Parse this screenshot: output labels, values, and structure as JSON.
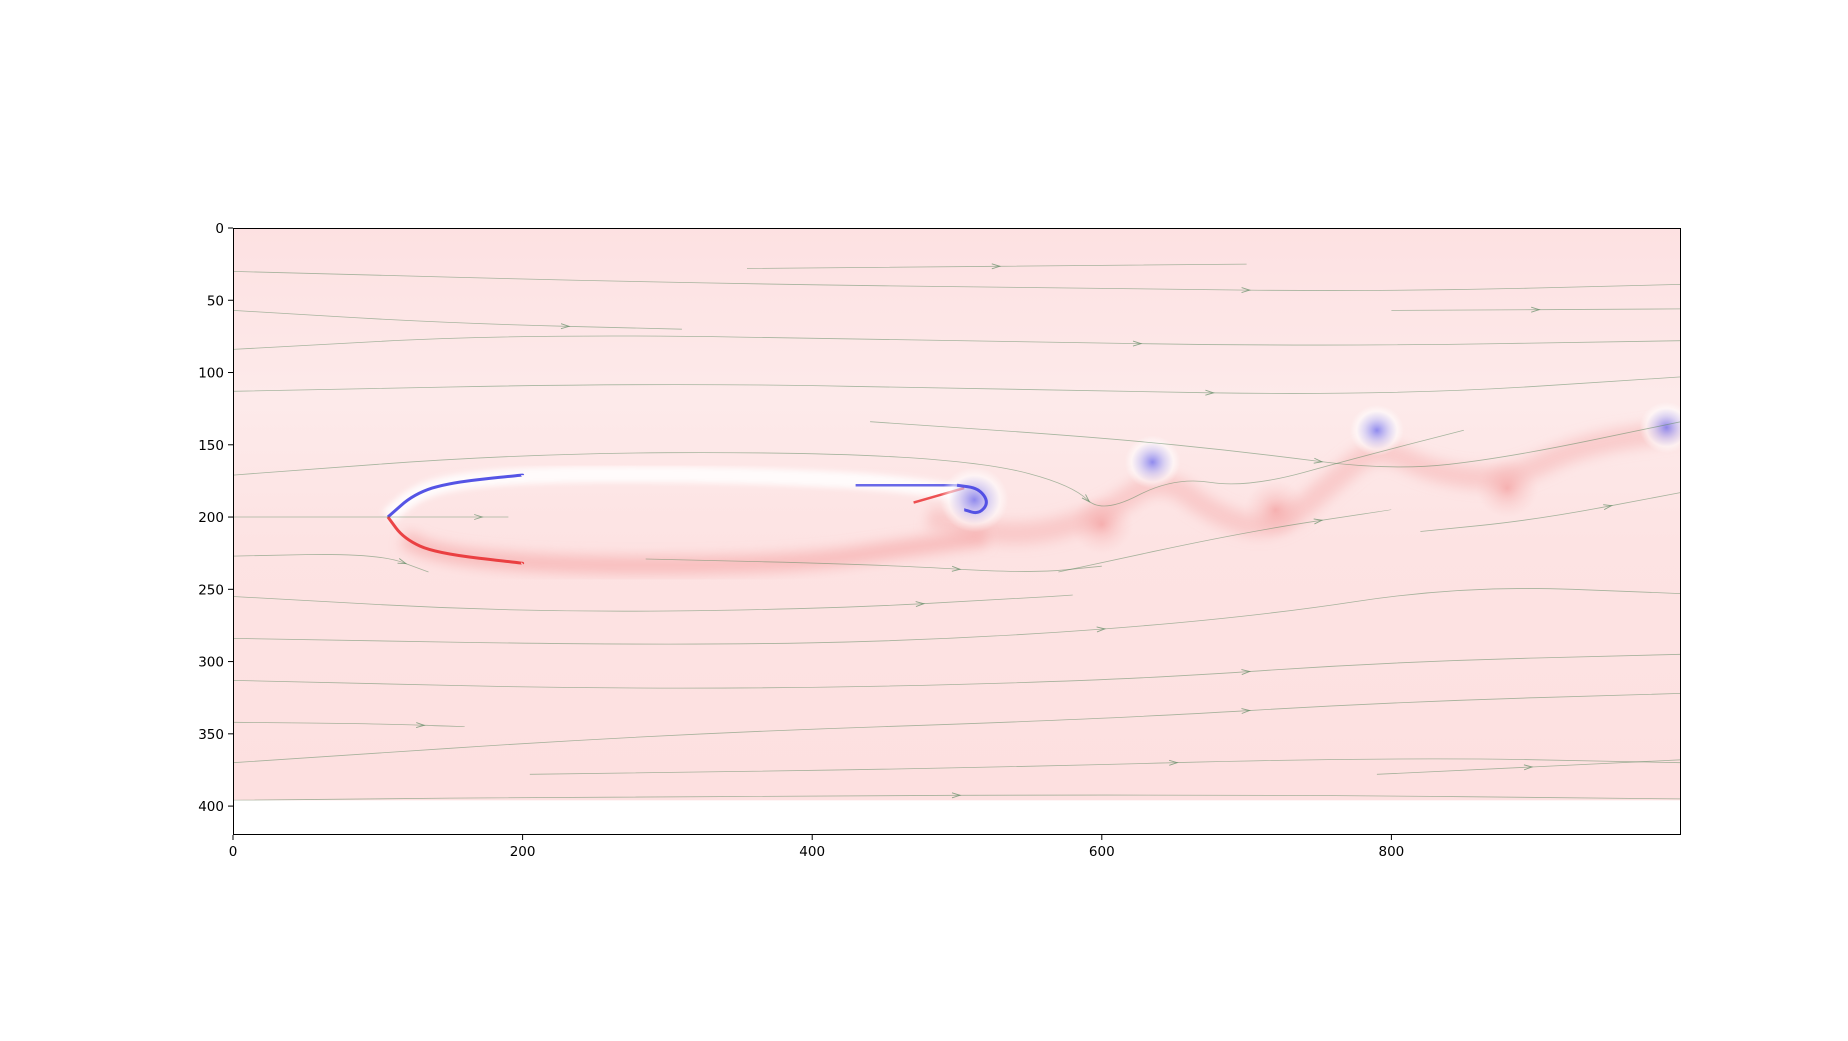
{
  "chart_data": {
    "type": "heatmap",
    "title": "",
    "xlabel": "",
    "ylabel": "",
    "xlim": [
      0,
      1000
    ],
    "ylim": [
      420,
      0
    ],
    "data_extent_y": [
      0,
      396
    ],
    "x_ticks": [
      0,
      200,
      400,
      600,
      800
    ],
    "y_ticks": [
      0,
      50,
      100,
      150,
      200,
      250,
      300,
      350,
      400
    ],
    "y_axis_inverted": true,
    "grid": false,
    "legend": "none",
    "colormap": "bwr",
    "colors": {
      "background": "#fde6e6",
      "positive": "#e8282a",
      "negative": "#2a2ae0",
      "neutral": "#ffffff",
      "streamline": "#5e8a62"
    },
    "airfoil": {
      "leading_edge": [
        107,
        200
      ],
      "trailing_edge": [
        500,
        183
      ],
      "upper_surface": [
        [
          107,
          200
        ],
        [
          125,
          184
        ],
        [
          150,
          176
        ],
        [
          200,
          171
        ],
        [
          300,
          170
        ],
        [
          400,
          173
        ],
        [
          460,
          177
        ],
        [
          500,
          183
        ]
      ],
      "lower_surface": [
        [
          107,
          200
        ],
        [
          118,
          215
        ],
        [
          140,
          225
        ],
        [
          200,
          232
        ],
        [
          300,
          234
        ],
        [
          400,
          231
        ],
        [
          460,
          222
        ],
        [
          500,
          183
        ]
      ]
    },
    "wake_vortices": [
      {
        "x": 512,
        "y": 188,
        "sign": "negative",
        "strength": 0.9
      },
      {
        "x": 635,
        "y": 162,
        "sign": "negative",
        "strength": 0.55
      },
      {
        "x": 790,
        "y": 140,
        "sign": "negative",
        "strength": 0.5
      },
      {
        "x": 990,
        "y": 138,
        "sign": "negative",
        "strength": 0.5
      },
      {
        "x": 600,
        "y": 205,
        "sign": "positive",
        "strength": 0.3
      },
      {
        "x": 720,
        "y": 195,
        "sign": "positive",
        "strength": 0.3
      },
      {
        "x": 880,
        "y": 180,
        "sign": "positive",
        "strength": 0.3
      }
    ],
    "streamlines": [
      [
        [
          0,
          30
        ],
        [
          300,
          38
        ],
        [
          600,
          42
        ],
        [
          800,
          44
        ],
        [
          1000,
          39
        ]
      ],
      [
        [
          0,
          57
        ],
        [
          150,
          66
        ],
        [
          310,
          70
        ]
      ],
      [
        [
          355,
          28
        ],
        [
          700,
          25
        ]
      ],
      [
        [
          0,
          84
        ],
        [
          200,
          73
        ],
        [
          500,
          78
        ],
        [
          750,
          82
        ],
        [
          1000,
          78
        ]
      ],
      [
        [
          0,
          113
        ],
        [
          300,
          107
        ],
        [
          550,
          112
        ],
        [
          800,
          116
        ],
        [
          1000,
          103
        ]
      ],
      [
        [
          440,
          134
        ],
        [
          600,
          145
        ],
        [
          700,
          155
        ],
        [
          800,
          168
        ],
        [
          880,
          159
        ],
        [
          1000,
          134
        ]
      ],
      [
        [
          800,
          57
        ],
        [
          1000,
          56
        ]
      ],
      [
        [
          0,
          171
        ],
        [
          200,
          156
        ],
        [
          400,
          155
        ],
        [
          520,
          162
        ],
        [
          580,
          178
        ],
        [
          600,
          198
        ],
        [
          650,
          172
        ],
        [
          700,
          180
        ],
        [
          780,
          158
        ],
        [
          850,
          140
        ]
      ],
      [
        [
          0,
          200
        ],
        [
          150,
          200
        ],
        [
          190,
          200
        ]
      ],
      [
        [
          0,
          227
        ],
        [
          100,
          225
        ],
        [
          135,
          238
        ]
      ],
      [
        [
          285,
          229
        ],
        [
          450,
          233
        ],
        [
          550,
          239
        ],
        [
          600,
          234
        ]
      ],
      [
        [
          570,
          238
        ],
        [
          700,
          210
        ],
        [
          800,
          195
        ]
      ],
      [
        [
          820,
          210
        ],
        [
          900,
          202
        ],
        [
          1000,
          183
        ]
      ],
      [
        [
          0,
          255
        ],
        [
          200,
          266
        ],
        [
          400,
          264
        ],
        [
          550,
          256
        ],
        [
          580,
          254
        ]
      ],
      [
        [
          0,
          284
        ],
        [
          300,
          289
        ],
        [
          500,
          285
        ],
        [
          700,
          270
        ],
        [
          850,
          247
        ],
        [
          1000,
          253
        ]
      ],
      [
        [
          0,
          313
        ],
        [
          300,
          320
        ],
        [
          600,
          314
        ],
        [
          800,
          300
        ],
        [
          1000,
          295
        ]
      ],
      [
        [
          0,
          342
        ],
        [
          100,
          343
        ],
        [
          160,
          345
        ]
      ],
      [
        [
          0,
          370
        ],
        [
          300,
          350
        ],
        [
          600,
          340
        ],
        [
          800,
          328
        ],
        [
          1000,
          322
        ]
      ],
      [
        [
          205,
          378
        ],
        [
          500,
          374
        ],
        [
          800,
          366
        ],
        [
          1000,
          370
        ]
      ],
      [
        [
          790,
          378
        ],
        [
          1000,
          368
        ]
      ],
      [
        [
          0,
          396
        ],
        [
          300,
          393
        ],
        [
          700,
          392
        ],
        [
          1000,
          395
        ]
      ]
    ]
  }
}
